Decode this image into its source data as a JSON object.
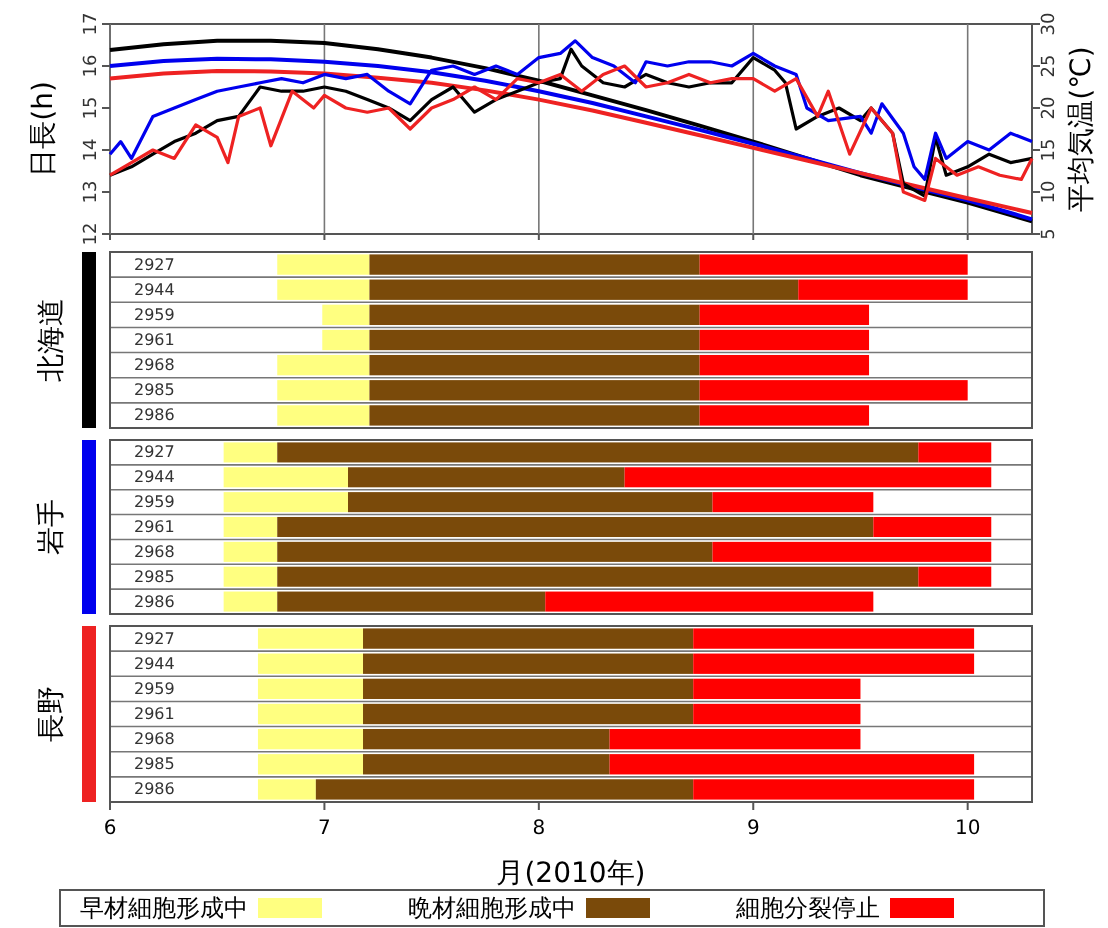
{
  "chart_data": [
    {
      "type": "line",
      "ylabel": "日長(h)",
      "y2label": "平均気温(℃)",
      "xlim": [
        6,
        10.3
      ],
      "xticks": [
        6,
        7,
        8,
        9,
        10
      ],
      "tick_labels": "y",
      "ylim": [
        12,
        17
      ],
      "yticks": [
        12,
        13,
        14,
        15,
        16,
        17
      ],
      "y2lim": [
        5,
        30
      ],
      "y2ticks": [
        5,
        10,
        15,
        20,
        25,
        30
      ],
      "grid": "x",
      "series": [
        {
          "color": "#000000",
          "x": [
            6.0,
            6.25,
            6.5,
            6.75,
            7.0,
            7.25,
            7.5,
            7.75,
            8.0,
            8.25,
            8.5,
            8.75,
            9.0,
            9.25,
            9.5,
            9.75,
            10.0,
            10.3
          ],
          "values": [
            16.38,
            16.52,
            16.6,
            16.6,
            16.55,
            16.4,
            16.2,
            15.95,
            15.65,
            15.3,
            14.95,
            14.58,
            14.2,
            13.8,
            13.4,
            13.07,
            12.75,
            12.3
          ]
        },
        {
          "color": "#0000ee",
          "x": [
            6.0,
            6.25,
            6.5,
            6.75,
            7.0,
            7.25,
            7.5,
            7.75,
            8.0,
            8.25,
            8.5,
            8.75,
            9.0,
            9.25,
            9.5,
            9.75,
            10.0,
            10.3
          ],
          "values": [
            16.0,
            16.12,
            16.17,
            16.16,
            16.1,
            16.0,
            15.85,
            15.65,
            15.4,
            15.12,
            14.8,
            14.48,
            14.15,
            13.8,
            13.45,
            13.12,
            12.8,
            12.35
          ]
        },
        {
          "color": "#ee2222",
          "x": [
            6.0,
            6.25,
            6.5,
            6.75,
            7.0,
            7.25,
            7.5,
            7.75,
            8.0,
            8.25,
            8.5,
            8.75,
            9.0,
            9.25,
            9.5,
            9.75,
            10.0,
            10.3
          ],
          "values": [
            15.7,
            15.82,
            15.88,
            15.87,
            15.82,
            15.72,
            15.6,
            15.42,
            15.2,
            14.94,
            14.65,
            14.35,
            14.05,
            13.75,
            13.45,
            13.15,
            12.85,
            12.5
          ]
        },
        {
          "color": "#000000",
          "axis": "y2",
          "x": [
            6.0,
            6.1,
            6.2,
            6.3,
            6.4,
            6.5,
            6.6,
            6.7,
            6.8,
            6.9,
            7.0,
            7.1,
            7.2,
            7.3,
            7.4,
            7.5,
            7.6,
            7.7,
            7.8,
            7.9,
            8.0,
            8.1,
            8.15,
            8.2,
            8.3,
            8.4,
            8.5,
            8.6,
            8.7,
            8.8,
            8.9,
            9.0,
            9.1,
            9.15,
            9.2,
            9.3,
            9.4,
            9.5,
            9.55,
            9.65,
            9.7,
            9.8,
            9.85,
            9.9,
            10.0,
            10.1,
            10.2,
            10.3
          ],
          "values": [
            12,
            13,
            14.5,
            16,
            17,
            18.5,
            19,
            22.5,
            22,
            22,
            22.5,
            22,
            21,
            20,
            18.5,
            21,
            22.5,
            19.5,
            21,
            22,
            23,
            23.5,
            27,
            25,
            23,
            22.5,
            24,
            23,
            22.5,
            23,
            23,
            26,
            24.5,
            23,
            17.5,
            19,
            20,
            18.5,
            20,
            17,
            11,
            9.5,
            16.5,
            12,
            13,
            14.5,
            13.5,
            14
          ]
        },
        {
          "color": "#0000ee",
          "axis": "y2",
          "x": [
            6.0,
            6.05,
            6.1,
            6.2,
            6.3,
            6.4,
            6.5,
            6.6,
            6.7,
            6.8,
            6.9,
            7.0,
            7.1,
            7.2,
            7.3,
            7.4,
            7.5,
            7.6,
            7.7,
            7.8,
            7.9,
            8.0,
            8.1,
            8.17,
            8.25,
            8.35,
            8.45,
            8.5,
            8.6,
            8.7,
            8.8,
            8.9,
            9.0,
            9.1,
            9.2,
            9.25,
            9.35,
            9.5,
            9.55,
            9.6,
            9.7,
            9.75,
            9.8,
            9.85,
            9.9,
            10.0,
            10.1,
            10.2,
            10.3
          ],
          "values": [
            14.5,
            16,
            14,
            19,
            20,
            21,
            22,
            22.5,
            23,
            23.5,
            23,
            24,
            23.5,
            24,
            22,
            20.5,
            24.5,
            25,
            24,
            25,
            24,
            26,
            26.5,
            28,
            26,
            25,
            23,
            25.5,
            25,
            25.5,
            25.5,
            25,
            26.5,
            25,
            24,
            20,
            18.5,
            19,
            17,
            20.5,
            17,
            13,
            11.5,
            17,
            14,
            16,
            15,
            17,
            16
          ]
        },
        {
          "color": "#ee2222",
          "axis": "y2",
          "x": [
            6.0,
            6.1,
            6.2,
            6.3,
            6.4,
            6.5,
            6.55,
            6.6,
            6.7,
            6.75,
            6.85,
            6.95,
            7.0,
            7.1,
            7.2,
            7.3,
            7.4,
            7.5,
            7.6,
            7.7,
            7.8,
            7.9,
            8.0,
            8.1,
            8.2,
            8.3,
            8.4,
            8.5,
            8.6,
            8.7,
            8.8,
            8.9,
            9.0,
            9.1,
            9.2,
            9.3,
            9.35,
            9.45,
            9.55,
            9.65,
            9.7,
            9.8,
            9.85,
            9.95,
            10.05,
            10.15,
            10.25,
            10.3
          ],
          "values": [
            12,
            13.5,
            15,
            14,
            18,
            16.5,
            13.5,
            19,
            20,
            15.5,
            22,
            20,
            21.5,
            20,
            19.5,
            20,
            17.5,
            20,
            21,
            22.5,
            21,
            23.5,
            23,
            24,
            22,
            24,
            25,
            22.5,
            23,
            24,
            23,
            23.5,
            23.5,
            22,
            23.5,
            19,
            22,
            14.5,
            20,
            17,
            10,
            9,
            14,
            12,
            13,
            12,
            11.5,
            14
          ]
        }
      ]
    },
    {
      "type": "bar",
      "orientation": "horizontal",
      "ylabel": "北海道",
      "tick_labels": "y",
      "xlim": [
        6,
        10.3
      ],
      "xticks": [
        6,
        7,
        8,
        9,
        10
      ],
      "categories": [
        "2927",
        "2944",
        "2959",
        "2961",
        "2968",
        "2985",
        "2986"
      ],
      "series": [
        {
          "color": "#ffff80",
          "base": [
            6.78,
            6.78,
            6.99,
            6.99,
            6.78,
            6.78,
            6.78
          ],
          "values": [
            0.43,
            0.43,
            0.22,
            0.22,
            0.43,
            0.43,
            0.43
          ]
        },
        {
          "color": "#7a4a0a",
          "base": [
            7.21,
            7.21,
            7.21,
            7.21,
            7.21,
            7.21,
            7.21
          ],
          "values": [
            1.54,
            2.0,
            1.54,
            1.54,
            1.54,
            1.54,
            1.54
          ]
        },
        {
          "color": "#ff0000",
          "base": [
            8.75,
            9.21,
            8.75,
            8.75,
            8.75,
            8.75,
            8.75
          ],
          "values": [
            1.25,
            0.79,
            0.79,
            0.79,
            0.79,
            1.25,
            0.79
          ]
        }
      ]
    },
    {
      "type": "bar",
      "orientation": "horizontal",
      "ylabel": "岩手",
      "tick_labels": "y",
      "xlim": [
        6,
        10.3
      ],
      "xticks": [
        6,
        7,
        8,
        9,
        10
      ],
      "categories": [
        "2927",
        "2944",
        "2959",
        "2961",
        "2968",
        "2985",
        "2986"
      ],
      "series": [
        {
          "color": "#ffff80",
          "base": [
            6.53,
            6.53,
            6.53,
            6.53,
            6.53,
            6.53,
            6.53
          ],
          "values": [
            0.25,
            0.58,
            0.58,
            0.25,
            0.25,
            0.25,
            0.25
          ]
        },
        {
          "color": "#7a4a0a",
          "base": [
            6.78,
            7.11,
            7.11,
            6.78,
            6.78,
            6.78,
            6.78
          ],
          "values": [
            2.99,
            1.29,
            1.7,
            2.78,
            2.03,
            2.99,
            1.25
          ]
        },
        {
          "color": "#ff0000",
          "base": [
            9.77,
            8.4,
            8.81,
            9.56,
            8.81,
            9.77,
            8.03
          ],
          "values": [
            0.34,
            1.71,
            0.75,
            0.55,
            1.3,
            0.34,
            1.53
          ]
        }
      ]
    },
    {
      "type": "bar",
      "orientation": "horizontal",
      "ylabel": "長野",
      "xlabel": "月(2010年)",
      "legend": "bottom",
      "xlim": [
        6,
        10.3
      ],
      "xticks": [
        6,
        7,
        8,
        9,
        10
      ],
      "categories": [
        "2927",
        "2944",
        "2959",
        "2961",
        "2968",
        "2985",
        "2986"
      ],
      "series": [
        {
          "name": "早材細胞形成中",
          "color": "#ffff80",
          "base": [
            6.69,
            6.69,
            6.69,
            6.69,
            6.69,
            6.69,
            6.69
          ],
          "values": [
            0.49,
            0.49,
            0.49,
            0.49,
            0.49,
            0.49,
            0.27
          ]
        },
        {
          "name": "晩材細胞形成中",
          "color": "#7a4a0a",
          "base": [
            7.18,
            7.18,
            7.18,
            7.18,
            7.18,
            7.18,
            6.96
          ],
          "values": [
            1.54,
            1.54,
            1.54,
            1.54,
            1.15,
            1.15,
            1.76
          ]
        },
        {
          "name": "細胞分裂停止",
          "color": "#ff0000",
          "base": [
            8.72,
            8.72,
            8.72,
            8.72,
            8.33,
            8.33,
            8.72
          ],
          "values": [
            1.31,
            1.31,
            0.78,
            0.78,
            1.17,
            1.7,
            1.31
          ]
        }
      ]
    }
  ]
}
